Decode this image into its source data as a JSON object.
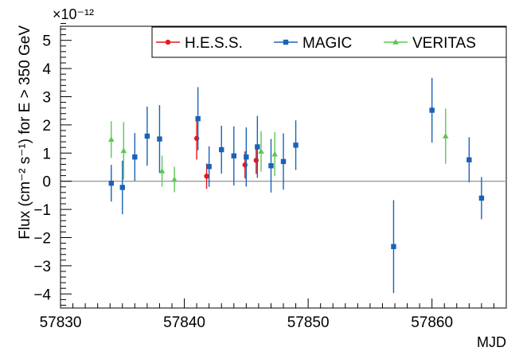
{
  "chart_data": {
    "type": "scatter",
    "title": "",
    "xlabel": "MJD",
    "ylabel": "Flux (cm⁻² s⁻¹) for E > 350 GeV",
    "y_exponent_label": "×10⁻¹²",
    "xlim": [
      57830,
      57866
    ],
    "ylim": [
      -4.5,
      5.5
    ],
    "x_tick_labels": [
      "57830",
      "57840",
      "57850",
      "57860"
    ],
    "y_tick_labels": [
      "−4",
      "−3",
      "−2",
      "−1",
      "0",
      "1",
      "2",
      "3",
      "4",
      "5"
    ],
    "reference_line_y": 0,
    "grid": false,
    "legend_position": "top-right",
    "series": [
      {
        "name": "H.E.S.S.",
        "color": "#e8151e",
        "marker": "circle",
        "points": [
          {
            "x": 57841.0,
            "y": 1.52,
            "err": 0.75
          },
          {
            "x": 57841.8,
            "y": 0.18,
            "err": 0.45
          },
          {
            "x": 57844.9,
            "y": 0.58,
            "err": 0.48
          },
          {
            "x": 57845.8,
            "y": 0.74,
            "err": 0.48
          }
        ]
      },
      {
        "name": "MAGIC",
        "color": "#1a62b8",
        "marker": "square",
        "points": [
          {
            "x": 57834.1,
            "y": -0.07,
            "err": 0.65
          },
          {
            "x": 57835.0,
            "y": -0.22,
            "err": 0.95
          },
          {
            "x": 57836.0,
            "y": 0.86,
            "err": 0.85
          },
          {
            "x": 57837.0,
            "y": 1.6,
            "err": 1.05
          },
          {
            "x": 57838.0,
            "y": 1.5,
            "err": 1.2
          },
          {
            "x": 57841.1,
            "y": 2.22,
            "err": 1.12
          },
          {
            "x": 57842.0,
            "y": 0.52,
            "err": 0.72
          },
          {
            "x": 57843.0,
            "y": 1.12,
            "err": 0.85
          },
          {
            "x": 57844.0,
            "y": 0.9,
            "err": 1.05
          },
          {
            "x": 57845.0,
            "y": 0.86,
            "err": 1.05
          },
          {
            "x": 57845.9,
            "y": 1.22,
            "err": 1.1
          },
          {
            "x": 57847.0,
            "y": 0.55,
            "err": 0.95
          },
          {
            "x": 57848.0,
            "y": 0.7,
            "err": 1.0
          },
          {
            "x": 57849.0,
            "y": 1.28,
            "err": 0.88
          },
          {
            "x": 57856.9,
            "y": -2.32,
            "err": 1.65
          },
          {
            "x": 57860.0,
            "y": 2.52,
            "err": 1.15
          },
          {
            "x": 57863.0,
            "y": 0.76,
            "err": 0.8
          },
          {
            "x": 57864.0,
            "y": -0.6,
            "err": 0.75
          }
        ]
      },
      {
        "name": "VERITAS",
        "color": "#5ec654",
        "marker": "triangle",
        "points": [
          {
            "x": 57834.1,
            "y": 1.48,
            "err": 0.65
          },
          {
            "x": 57835.1,
            "y": 1.08,
            "err": 1.02
          },
          {
            "x": 57838.2,
            "y": 0.36,
            "err": 0.55
          },
          {
            "x": 57839.2,
            "y": 0.06,
            "err": 0.45
          },
          {
            "x": 57846.2,
            "y": 1.06,
            "err": 0.72
          },
          {
            "x": 57847.3,
            "y": 0.96,
            "err": 0.78
          },
          {
            "x": 57861.1,
            "y": 1.6,
            "err": 0.98
          }
        ]
      }
    ]
  }
}
